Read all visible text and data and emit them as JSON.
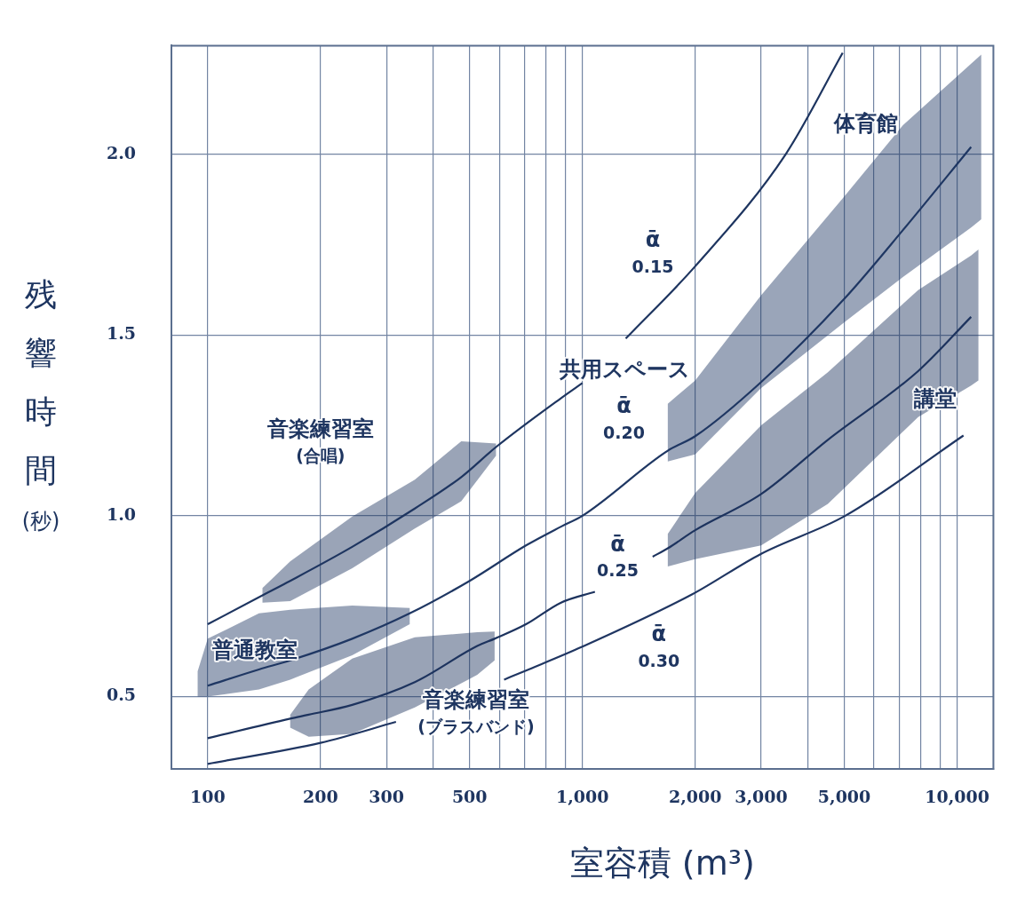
{
  "chart_data": {
    "type": "line",
    "xlabel": "室容積 (m³)",
    "ylabel": "残響時間 (秒)",
    "log": "x",
    "grid": true,
    "xlim": [
      80,
      12500
    ],
    "ylim": [
      0.3,
      2.3
    ],
    "xticks": [
      100,
      200,
      300,
      {
        "value": 400,
        "label": null
      },
      500,
      {
        "value": 600,
        "label": null
      },
      {
        "value": 700,
        "label": null
      },
      {
        "value": 800,
        "label": null
      },
      {
        "value": 900,
        "label": null
      },
      {
        "value": 1000,
        "label": "1,000"
      },
      {
        "value": 2000,
        "label": "2,000"
      },
      {
        "value": 3000,
        "label": "3,000"
      },
      {
        "value": 4000,
        "label": null
      },
      {
        "value": 5000,
        "label": "5,000"
      },
      {
        "value": 6000,
        "label": null
      },
      {
        "value": 7000,
        "label": null
      },
      {
        "value": 8000,
        "label": null
      },
      {
        "value": 9000,
        "label": null
      },
      {
        "value": 10000,
        "label": "10,000"
      }
    ],
    "yticks": [
      0.5,
      {
        "value": 1,
        "label": "1.0"
      },
      1.5,
      {
        "value": 2,
        "label": "2.0"
      }
    ],
    "series": [
      {
        "color": "#1e3560",
        "x": [
          100,
          140,
          166,
          243,
          357,
          475,
          588,
          876,
          1000,
          1150,
          1305,
          2000,
          3490,
          4950
        ],
        "values": [
          0.7,
          0.78,
          0.82,
          0.914,
          1.02,
          1.107,
          1.19,
          1.325,
          1.367,
          null,
          1.49,
          1.69,
          2.0,
          2.28
        ],
        "lower": [
          null,
          0.76,
          0.764,
          0.855,
          0.965,
          1.04,
          1.166,
          null,
          null,
          null,
          null,
          null,
          null,
          null
        ],
        "upper": [
          null,
          0.8,
          0.874,
          0.998,
          1.1,
          1.206,
          1.2,
          null,
          null,
          null,
          null,
          null,
          null,
          null
        ]
      },
      {
        "color": "#1f3763",
        "x": [
          94,
          100,
          137,
          166,
          243,
          346,
          500,
          707,
          877,
          1000,
          1690,
          2000,
          3000,
          5000,
          7170,
          10900,
          11600
        ],
        "values": [
          null,
          0.53,
          0.575,
          0.6,
          0.66,
          0.73,
          0.82,
          0.918,
          0.97,
          1.0,
          1.18,
          1.22,
          1.37,
          1.6,
          1.79,
          2.02,
          null
        ],
        "lower": [
          0.5,
          0.5,
          0.52,
          0.547,
          0.614,
          0.7,
          null,
          null,
          null,
          null,
          1.15,
          1.17,
          1.353,
          1.535,
          1.66,
          1.797,
          1.82
        ],
        "upper": [
          0.57,
          0.66,
          0.73,
          0.74,
          0.752,
          0.745,
          null,
          null,
          null,
          null,
          1.31,
          1.374,
          1.61,
          1.883,
          2.08,
          2.25,
          2.275
        ]
      },
      {
        "color": "#1d335e",
        "x": [
          100,
          166,
          186,
          243,
          357,
          524,
          583,
          707,
          877,
          1080,
          1300,
          1540,
          1690,
          2000,
          3000,
          4520,
          7870,
          10900,
          11400
        ],
        "values": [
          0.385,
          0.439,
          0.45,
          0.477,
          0.54,
          0.64,
          0.66,
          0.7,
          0.76,
          0.79,
          null,
          0.887,
          0.91,
          0.96,
          1.06,
          1.21,
          1.4,
          1.55,
          null
        ],
        "lower": [
          null,
          0.414,
          0.389,
          0.397,
          0.47,
          0.56,
          0.6,
          null,
          null,
          null,
          null,
          null,
          0.86,
          0.88,
          0.918,
          1.033,
          1.273,
          1.36,
          1.374
        ],
        "upper": [
          null,
          0.45,
          0.52,
          0.605,
          0.664,
          0.678,
          0.68,
          null,
          null,
          null,
          null,
          null,
          0.95,
          1.063,
          1.25,
          1.397,
          1.624,
          1.72,
          1.736
        ]
      },
      {
        "color": "#203662",
        "x": [
          100,
          200,
          318,
          450,
          618,
          707,
          1000,
          1965,
          3000,
          5030,
          10400
        ],
        "values": [
          0.314,
          0.372,
          0.43,
          null,
          0.547,
          0.572,
          0.638,
          0.783,
          0.895,
          1.0,
          1.222
        ]
      }
    ],
    "annotations": [
      "ᾱ\n0.15",
      "ᾱ\n0.20",
      "ᾱ\n0.25",
      "ᾱ\n0.30",
      "共用スペース",
      "体育館",
      "講堂",
      "音楽練習室\n(合唱)",
      "普通教室",
      "音楽練習室\n(ブラスバンド)"
    ]
  }
}
